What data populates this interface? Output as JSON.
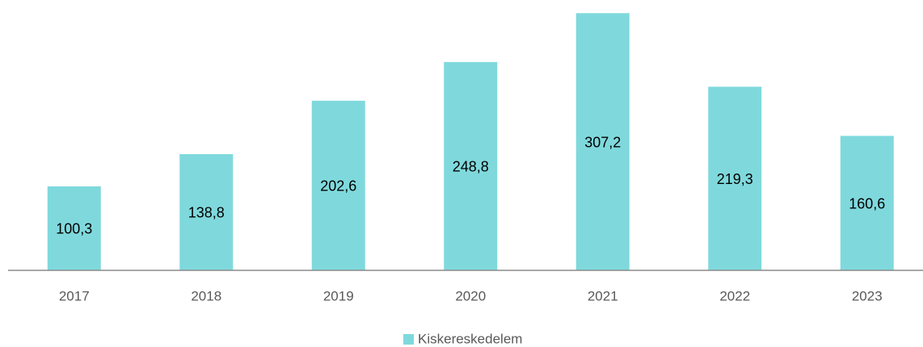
{
  "chart_data": {
    "type": "bar",
    "categories": [
      "2017",
      "2018",
      "2019",
      "2020",
      "2021",
      "2022",
      "2023"
    ],
    "series": [
      {
        "name": "Kiskereskedelem",
        "color": "#7fd9dc",
        "values": [
          100.3,
          138.8,
          202.6,
          248.8,
          307.2,
          219.3,
          160.6
        ],
        "value_labels": [
          "100,3",
          "138,8",
          "202,6",
          "248,8",
          "307,2",
          "219,3",
          "160,6"
        ]
      }
    ],
    "ylim": [
      0,
      320
    ]
  }
}
